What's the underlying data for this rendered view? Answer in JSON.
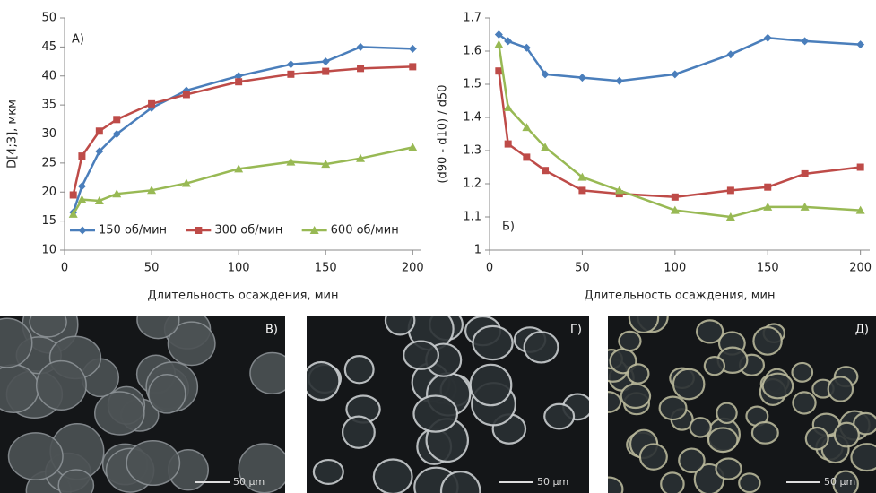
{
  "chart_data": [
    {
      "type": "line",
      "annotation": "А)",
      "y_label": "D[4;3], мкм",
      "x_label": "Длительность осаждения, мин",
      "x": [
        5,
        10,
        20,
        30,
        50,
        70,
        100,
        130,
        150,
        170,
        200
      ],
      "xlim": [
        0,
        205
      ],
      "xticks": [
        0,
        50,
        100,
        150,
        200
      ],
      "ylim": [
        10,
        50
      ],
      "yticks": [
        10,
        15,
        20,
        25,
        30,
        35,
        40,
        45,
        50
      ],
      "grid": false,
      "legend": "bottom",
      "series": [
        {
          "name": "150 об/мин",
          "color": "#4a7ebb",
          "marker": "diamond",
          "values": [
            16.5,
            21,
            27,
            30,
            34.5,
            37.5,
            40,
            42,
            42.5,
            45,
            44.7
          ]
        },
        {
          "name": "300 об/мин",
          "color": "#be4b48",
          "marker": "square",
          "values": [
            19.5,
            26.2,
            30.5,
            32.5,
            35.2,
            36.8,
            39,
            40.3,
            40.8,
            41.3,
            41.6
          ]
        },
        {
          "name": "600 об/мин",
          "color": "#98b954",
          "marker": "triangle",
          "values": [
            16.2,
            18.7,
            18.5,
            19.7,
            20.3,
            21.5,
            24,
            25.2,
            24.8,
            25.8,
            27.7
          ]
        }
      ]
    },
    {
      "type": "line",
      "annotation": "Б)",
      "y_label": "(d90 - d10) / d50",
      "x_label": "Длительность осаждения, мин",
      "x": [
        5,
        10,
        20,
        30,
        50,
        70,
        100,
        130,
        150,
        170,
        200
      ],
      "xlim": [
        0,
        205
      ],
      "xticks": [
        0,
        50,
        100,
        150,
        200
      ],
      "ylim": [
        1,
        1.7
      ],
      "yticks": [
        1,
        1.1,
        1.2,
        1.3,
        1.4,
        1.5,
        1.6,
        1.7
      ],
      "grid": false,
      "legend": "none",
      "series": [
        {
          "color": "#4a7ebb",
          "marker": "diamond",
          "values": [
            1.65,
            1.63,
            1.61,
            1.53,
            1.52,
            1.51,
            1.53,
            1.59,
            1.64,
            1.63,
            1.62
          ]
        },
        {
          "color": "#be4b48",
          "marker": "square",
          "values": [
            1.54,
            1.32,
            1.28,
            1.24,
            1.18,
            1.17,
            1.16,
            1.18,
            1.19,
            1.23,
            1.25
          ]
        },
        {
          "color": "#98b954",
          "marker": "triangle",
          "values": [
            1.62,
            1.43,
            1.37,
            1.31,
            1.22,
            1.18,
            1.12,
            1.1,
            1.13,
            1.13,
            1.12
          ]
        }
      ]
    }
  ],
  "panels": [
    {
      "label": "В)",
      "scale": "50 µm"
    },
    {
      "label": "Г)",
      "scale": "50 µm"
    },
    {
      "label": "Д)",
      "scale": "50 µm"
    }
  ]
}
